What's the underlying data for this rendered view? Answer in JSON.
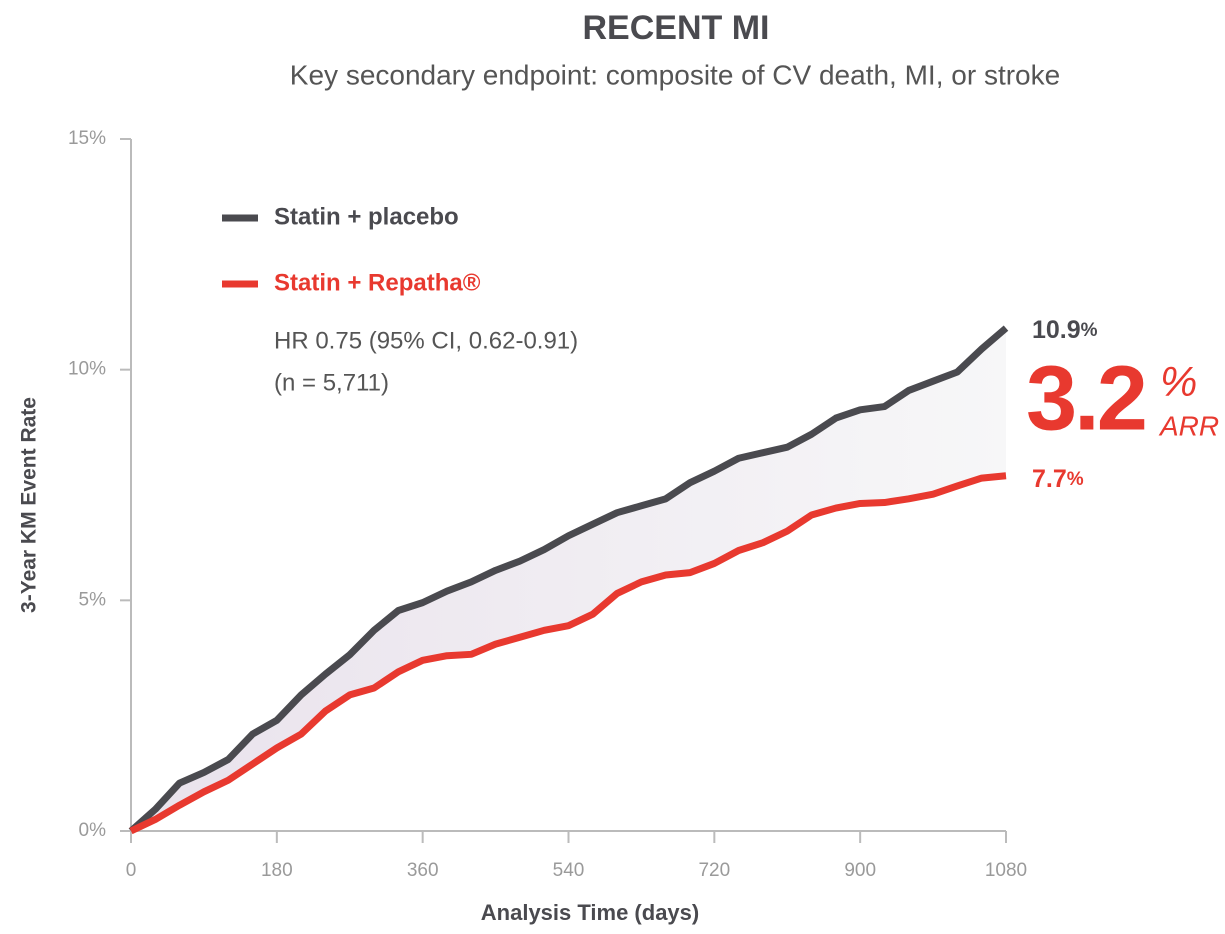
{
  "chart_data": {
    "type": "line",
    "title": "RECENT MI",
    "subtitle": "Key secondary endpoint: composite of CV death, MI, or stroke",
    "x_label": "Analysis Time (days)",
    "y_label": "3-Year KM Event Rate",
    "x": [
      0,
      30,
      60,
      90,
      120,
      150,
      180,
      210,
      240,
      270,
      300,
      330,
      360,
      390,
      420,
      450,
      480,
      510,
      540,
      570,
      600,
      630,
      660,
      690,
      720,
      750,
      780,
      810,
      840,
      870,
      900,
      930,
      960,
      990,
      1020,
      1050,
      1080
    ],
    "series": [
      {
        "name": "Statin + placebo",
        "color": "#4a4a4f",
        "values": [
          0,
          0.47,
          1.04,
          1.27,
          1.55,
          2.1,
          2.4,
          2.95,
          3.4,
          3.82,
          4.35,
          4.78,
          4.95,
          5.2,
          5.4,
          5.65,
          5.85,
          6.1,
          6.4,
          6.65,
          6.9,
          7.05,
          7.2,
          7.55,
          7.8,
          8.08,
          8.2,
          8.32,
          8.6,
          8.95,
          9.13,
          9.2,
          9.55,
          9.75,
          9.95,
          10.45,
          10.9
        ]
      },
      {
        "name": "Statin + Repatha®",
        "color": "#e8392f",
        "values": [
          0,
          0.25,
          0.56,
          0.85,
          1.1,
          1.45,
          1.8,
          2.1,
          2.6,
          2.95,
          3.1,
          3.45,
          3.7,
          3.8,
          3.83,
          4.05,
          4.2,
          4.35,
          4.45,
          4.7,
          5.15,
          5.4,
          5.55,
          5.6,
          5.8,
          6.08,
          6.25,
          6.5,
          6.85,
          7.0,
          7.1,
          7.12,
          7.2,
          7.3,
          7.48,
          7.65,
          7.7
        ]
      }
    ],
    "xlim": [
      0,
      1080
    ],
    "xticks": [
      0,
      180,
      360,
      540,
      720,
      900,
      1080
    ],
    "ylim": [
      0,
      15
    ],
    "yticks": [
      {
        "value": 0,
        "label": "0%"
      },
      {
        "value": 5,
        "label": "5%"
      },
      {
        "value": 10,
        "label": "10%"
      },
      {
        "value": 15,
        "label": "15%"
      }
    ],
    "grid": false,
    "legend_position": "top-left",
    "annotations": {
      "hr": "HR 0.75 (95% CI, 0.62-0.91)",
      "n": "(n = 5,711)",
      "placebo_end": {
        "value": 10.9,
        "unit": "%"
      },
      "repatha_end": {
        "value": 7.7,
        "unit": "%"
      },
      "arr": {
        "value": 3.2,
        "unit": "%",
        "label": "ARR"
      }
    }
  }
}
